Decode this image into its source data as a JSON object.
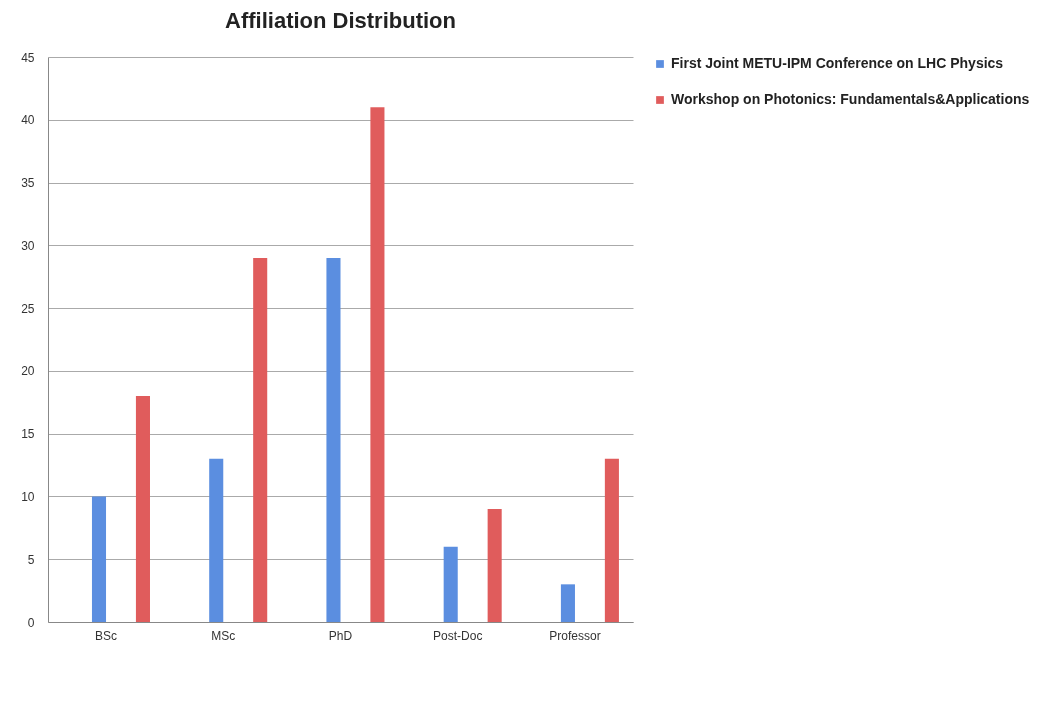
{
  "chart_data": {
    "type": "bar",
    "title": "Affiliation Distribution",
    "categories": [
      "BSc",
      "MSc",
      "PhD",
      "Post-Doc",
      "Professor"
    ],
    "series": [
      {
        "name": "First Joint METU-IPM Conference on LHC Physics",
        "color": "#5b8ee0",
        "values": [
          10,
          13,
          29,
          6,
          3
        ]
      },
      {
        "name": "Workshop on Photonics: Fundamentals&Applications",
        "color": "#e05c5c",
        "values": [
          18,
          29,
          41,
          9,
          13
        ]
      }
    ],
    "ylim": [
      0,
      45
    ],
    "yticks": [
      0,
      5,
      10,
      15,
      20,
      25,
      30,
      35,
      40,
      45
    ],
    "grid": "y",
    "legend": "right"
  }
}
